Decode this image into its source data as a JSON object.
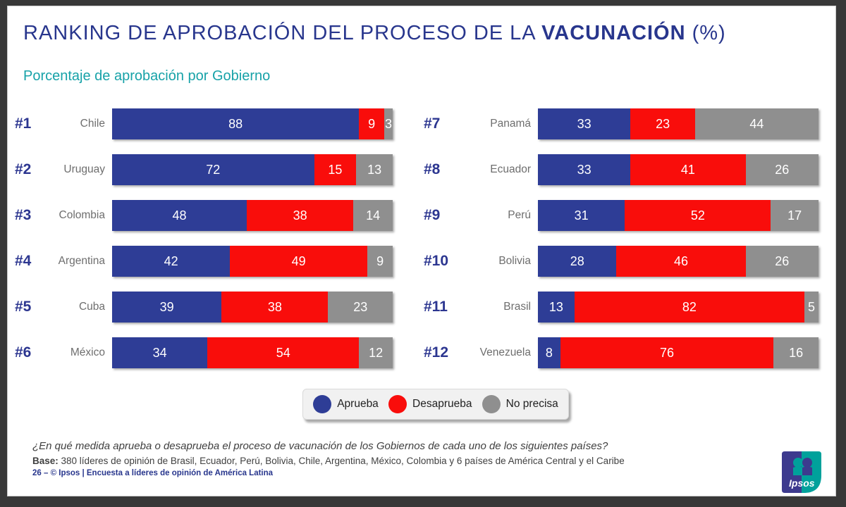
{
  "title": {
    "prefix": "RANKING DE APROBACIÓN DEL PROCESO DE LA ",
    "emphasis": "VACUNACIÓN",
    "suffix": " (%)"
  },
  "subtitle": "Porcentaje de aprobación por Gobierno",
  "legend": {
    "items": [
      {
        "label": "Aprueba",
        "color": "#2E3D96"
      },
      {
        "label": "Desaprueba",
        "color": "#F90D0B"
      },
      {
        "label": "No precisa",
        "color": "#8F8F8F"
      }
    ]
  },
  "chart_data": {
    "type": "bar",
    "orientation": "horizontal",
    "stacked": true,
    "unit": "%",
    "xlim": [
      0,
      100
    ],
    "series_names": [
      "Aprueba",
      "Desaprueba",
      "No precisa"
    ],
    "series_colors": [
      "#2E3D96",
      "#F90D0B",
      "#8F8F8F"
    ],
    "columns": {
      "left": [
        {
          "rank": "#1",
          "country": "Chile",
          "values": [
            88,
            9,
            3
          ]
        },
        {
          "rank": "#2",
          "country": "Uruguay",
          "values": [
            72,
            15,
            13
          ]
        },
        {
          "rank": "#3",
          "country": "Colombia",
          "values": [
            48,
            38,
            14
          ]
        },
        {
          "rank": "#4",
          "country": "Argentina",
          "values": [
            42,
            49,
            9
          ]
        },
        {
          "rank": "#5",
          "country": "Cuba",
          "values": [
            39,
            38,
            23
          ]
        },
        {
          "rank": "#6",
          "country": "México",
          "values": [
            34,
            54,
            12
          ]
        }
      ],
      "right": [
        {
          "rank": "#7",
          "country": "Panamá",
          "values": [
            33,
            23,
            44
          ]
        },
        {
          "rank": "#8",
          "country": "Ecuador",
          "values": [
            33,
            41,
            26
          ]
        },
        {
          "rank": "#9",
          "country": "Perú",
          "values": [
            31,
            52,
            17
          ]
        },
        {
          "rank": "#10",
          "country": "Bolivia",
          "values": [
            28,
            46,
            26
          ]
        },
        {
          "rank": "#11",
          "country": "Brasil",
          "values": [
            13,
            82,
            5
          ]
        },
        {
          "rank": "#12",
          "country": "Venezuela",
          "values": [
            8,
            76,
            16
          ]
        }
      ]
    }
  },
  "footer": {
    "question": "¿En qué medida aprueba o desaprueba el proceso de vacunación de los Gobiernos de cada uno de los siguientes países?",
    "base_label": "Base:",
    "base_text": " 380 líderes de opinión de Brasil, Ecuador, Perú, Bolivia, Chile, Argentina, México, Colombia y 6 países de América Central y el Caribe",
    "credit": "26 –  © Ipsos | Encuesta a líderes de opinión de América Latina"
  },
  "logo": {
    "text": "Ipsos"
  },
  "colors": {
    "title_blue": "#28368D",
    "subtitle_teal": "#17A2A8",
    "rank_blue": "#2C3690",
    "country_gray": "#6E6E6E",
    "frame_dark": "#383838",
    "logo_blue": "#3D3A8E",
    "logo_teal": "#00A19B"
  }
}
